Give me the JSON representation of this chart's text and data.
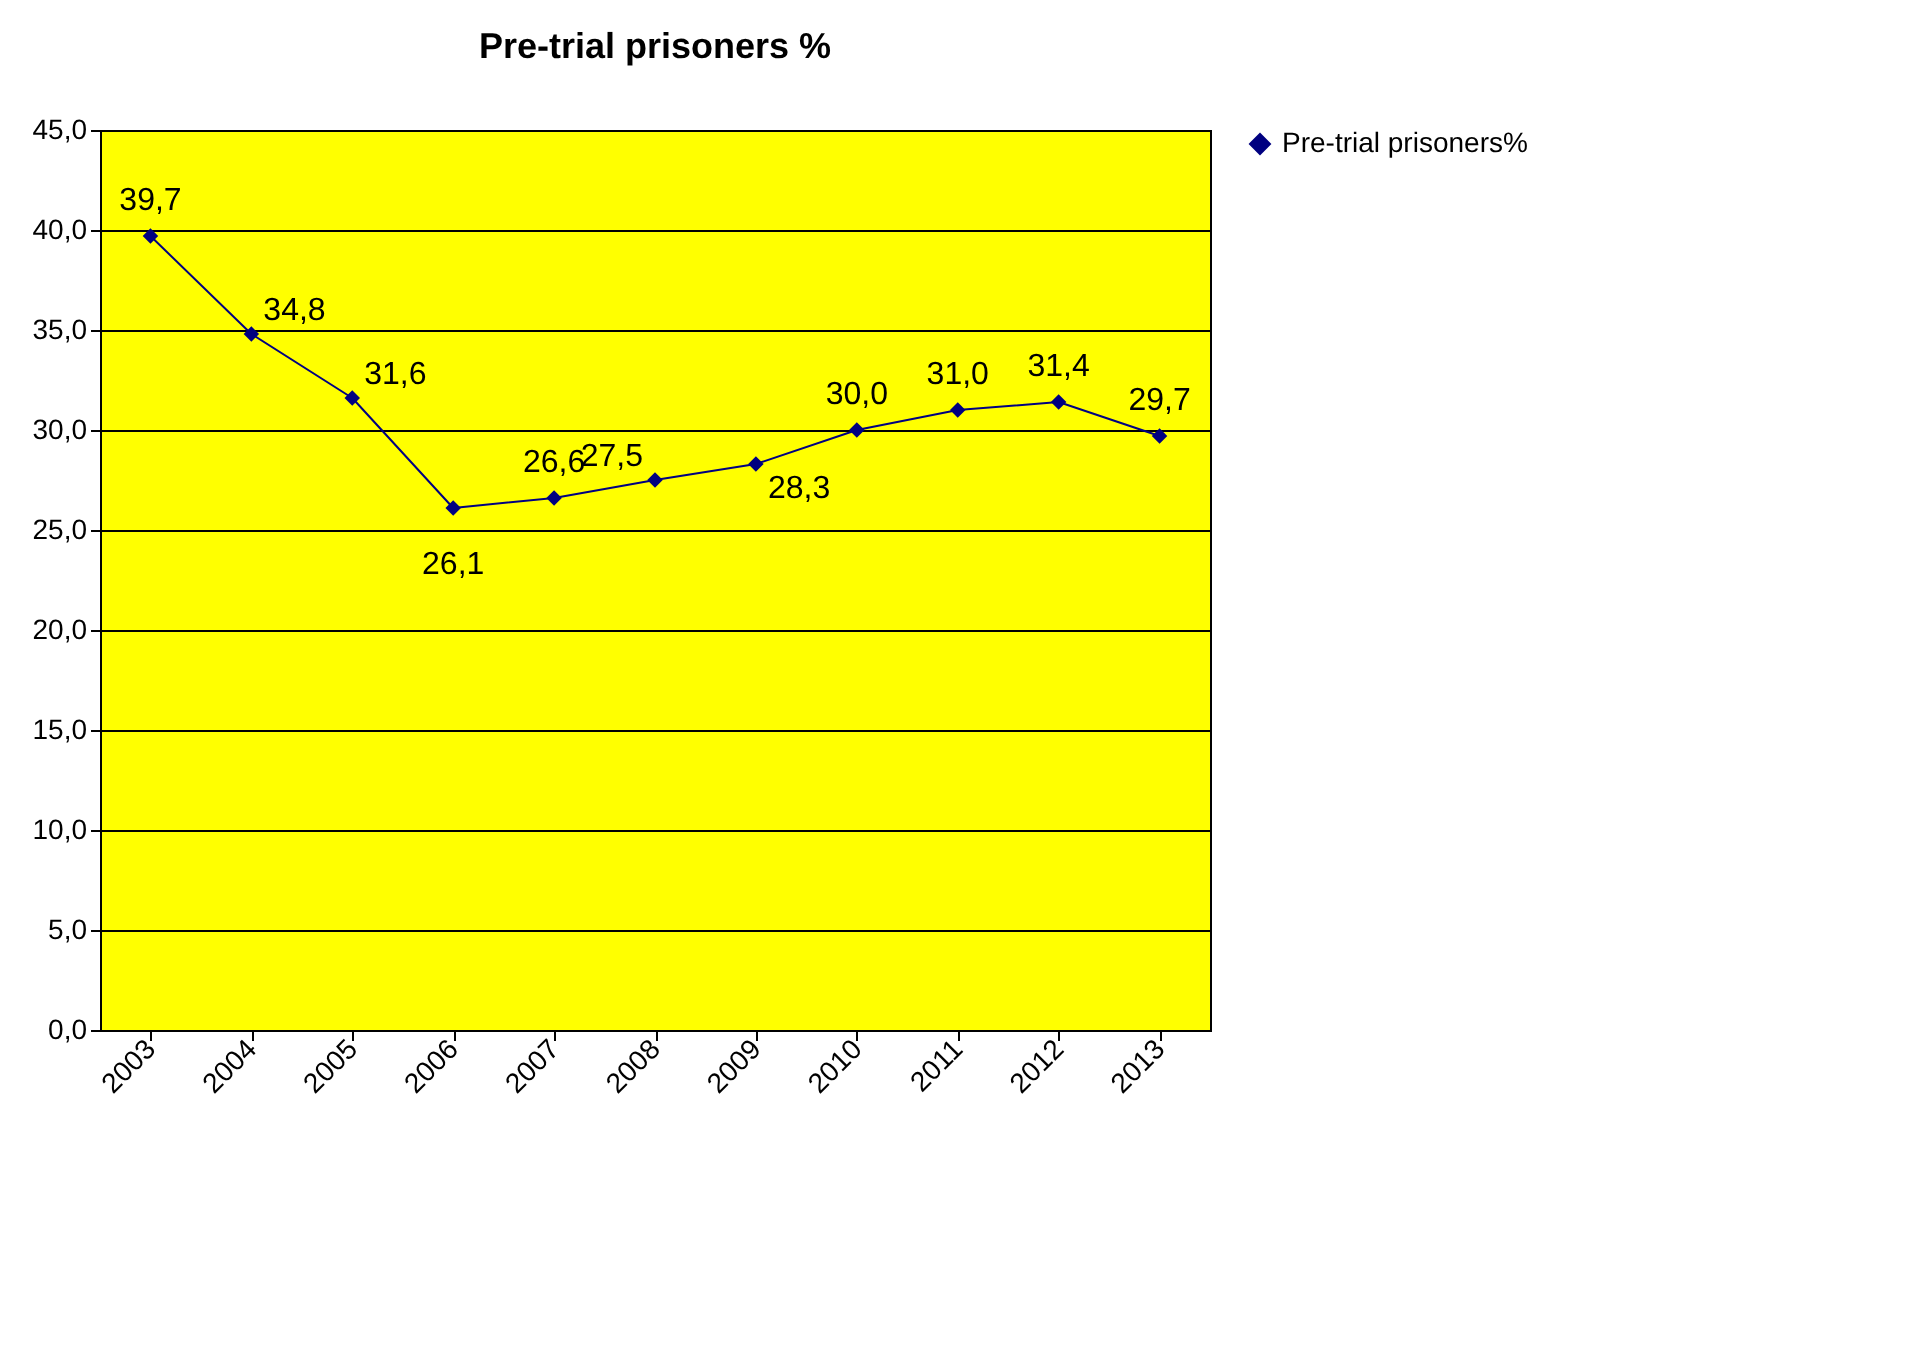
{
  "chart_data": {
    "type": "line",
    "title": "Pre-trial prisoners %",
    "categories": [
      "2003",
      "2004",
      "2005",
      "2006",
      "2007",
      "2008",
      "2009",
      "2010",
      "2011",
      "2012",
      "2013"
    ],
    "series": [
      {
        "name": "Pre-trial prisoners%",
        "color": "#000080",
        "values": [
          39.7,
          34.8,
          31.6,
          26.1,
          26.6,
          27.5,
          28.3,
          30.0,
          31.0,
          31.4,
          29.7
        ],
        "value_labels": [
          "39,7",
          "34,8",
          "31,6",
          "26,1",
          "26,6",
          "27,5",
          "28,3",
          "30,0",
          "31,0",
          "31,4",
          "29,7"
        ]
      }
    ],
    "ylim": [
      0,
      45
    ],
    "yticks": [
      {
        "value": 0,
        "label": "0,0"
      },
      {
        "value": 5,
        "label": "5,0"
      },
      {
        "value": 10,
        "label": "10,0"
      },
      {
        "value": 15,
        "label": "15,0"
      },
      {
        "value": 20,
        "label": "20,0"
      },
      {
        "value": 25,
        "label": "25,0"
      },
      {
        "value": 30,
        "label": "30,0"
      },
      {
        "value": 35,
        "label": "35,0"
      },
      {
        "value": 40,
        "label": "40,0"
      },
      {
        "value": 45,
        "label": "45,0"
      }
    ],
    "grid": "y",
    "legend": "right",
    "marker": "diamond",
    "line_style": "solid"
  }
}
